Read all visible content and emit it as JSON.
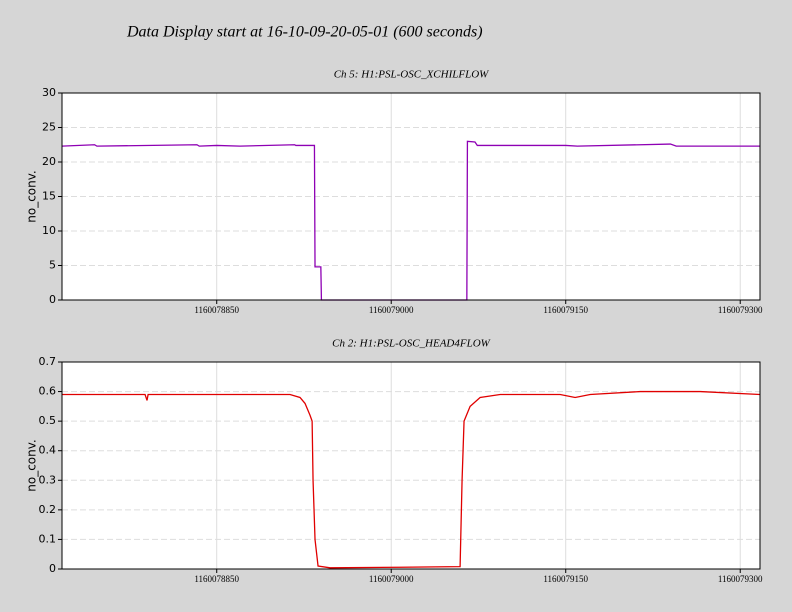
{
  "title": "Data Display start at 16-10-09-20-05-01 (600 seconds)",
  "chart_data": [
    {
      "type": "line",
      "title": "Ch 5: H1:PSL-OSC_XCHILFLOW",
      "ylabel": "no_conv.",
      "color": "#8e00b4",
      "xlim": [
        1160078717,
        1160079317
      ],
      "xticks": [
        1160078850,
        1160079000,
        1160079150,
        1160079300
      ],
      "ylim": [
        0,
        30
      ],
      "yticks": [
        0,
        5,
        10,
        15,
        20,
        25,
        30
      ],
      "grid": true,
      "x": [
        1160078717,
        1160078745,
        1160078747,
        1160078833,
        1160078835,
        1160078850,
        1160078870,
        1160078917,
        1160078918,
        1160078934,
        1160078934.5,
        1160078939.5,
        1160078940,
        1160079065,
        1160079065.5,
        1160079072,
        1160079074,
        1160079150,
        1160079160,
        1160079240,
        1160079245,
        1160079317
      ],
      "values": [
        22.3,
        22.5,
        22.3,
        22.5,
        22.3,
        22.4,
        22.3,
        22.5,
        22.4,
        22.4,
        4.8,
        4.8,
        0,
        0,
        23,
        22.9,
        22.4,
        22.4,
        22.3,
        22.6,
        22.3,
        22.3
      ]
    },
    {
      "type": "line",
      "title": "Ch 2: H1:PSL-OSC_HEAD4FLOW",
      "ylabel": "no_conv.",
      "color": "#e00000",
      "xlim": [
        1160078717,
        1160079317
      ],
      "xticks": [
        1160078850,
        1160079000,
        1160079150,
        1160079300
      ],
      "ylim": [
        0,
        0.7
      ],
      "yticks": [
        0,
        0.1,
        0.2,
        0.3,
        0.4,
        0.5,
        0.6,
        0.7
      ],
      "grid": true,
      "x": [
        1160078717,
        1160078788.4,
        1160078790.1,
        1160078791,
        1160078913,
        1160078921.6,
        1160078925.9,
        1160078930.2,
        1160078932,
        1160078932.8,
        1160078934.5,
        1160078937.1,
        1160078947.4,
        1160079007.6,
        1160079059.2,
        1160079060.9,
        1160079062.6,
        1160079067.8,
        1160079076.4,
        1160079093.6,
        1160079145.2,
        1160079158.1,
        1160079171,
        1160079214,
        1160079265.6,
        1160079317
      ],
      "values": [
        0.59,
        0.59,
        0.57,
        0.59,
        0.59,
        0.58,
        0.56,
        0.52,
        0.5,
        0.3,
        0.1,
        0.01,
        0.004,
        0.006,
        0.008,
        0.3,
        0.5,
        0.55,
        0.58,
        0.59,
        0.59,
        0.58,
        0.59,
        0.6,
        0.6,
        0.59
      ]
    }
  ]
}
